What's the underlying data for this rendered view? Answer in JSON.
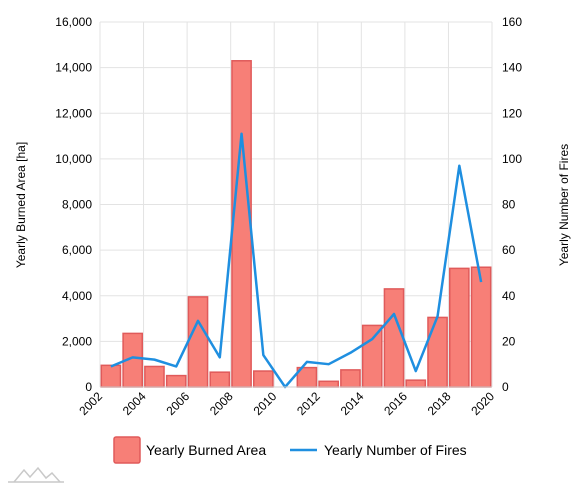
{
  "chart_data": {
    "type": "bar",
    "x_ticks": [
      "2002",
      "2004",
      "2006",
      "2008",
      "2010",
      "2012",
      "2014",
      "2016",
      "2018",
      "2020"
    ],
    "y_left_ticks": [
      "0",
      "2,000",
      "4,000",
      "6,000",
      "8,000",
      "10,000",
      "12,000",
      "14,000",
      "16,000"
    ],
    "y_right_ticks": [
      "0",
      "20",
      "40",
      "60",
      "80",
      "100",
      "120",
      "140",
      "160"
    ],
    "ylabel": "Yearly Burned Area [ha]",
    "ylabel_right": "Yearly Number of Fires",
    "ylim": [
      0,
      16000
    ],
    "ylim_right": [
      0,
      160
    ],
    "xlim": [
      2002,
      2020
    ],
    "grid": true,
    "legend_position": "bottom",
    "series": [
      {
        "name": "Yearly Burned Area",
        "kind": "bar",
        "axis": "left",
        "color": "#f77f77",
        "border_color": "#e05a5a",
        "x": [
          2002.5,
          2003.5,
          2004.5,
          2005.5,
          2006.5,
          2007.5,
          2008.5,
          2009.5,
          2010.5,
          2011.5,
          2012.5,
          2013.5,
          2014.5,
          2015.5,
          2016.5,
          2017.5,
          2018.5,
          2019.5
        ],
        "values": [
          950,
          2350,
          900,
          500,
          3950,
          650,
          14300,
          700,
          0,
          850,
          250,
          750,
          2700,
          4300,
          300,
          3050,
          5200,
          5250
        ]
      },
      {
        "name": "Yearly Number of Fires",
        "kind": "line",
        "axis": "right",
        "color": "#1f8fe0",
        "x": [
          2002.5,
          2003.5,
          2004.5,
          2005.5,
          2006.5,
          2007.5,
          2008.5,
          2009.5,
          2010.5,
          2011.5,
          2012.5,
          2013.5,
          2014.5,
          2015.5,
          2016.5,
          2017.5,
          2018.5,
          2019.5
        ],
        "values": [
          9,
          13,
          12,
          9,
          29,
          13,
          111,
          14,
          0,
          11,
          10,
          15,
          21,
          32,
          7,
          31,
          97,
          46
        ]
      }
    ]
  }
}
